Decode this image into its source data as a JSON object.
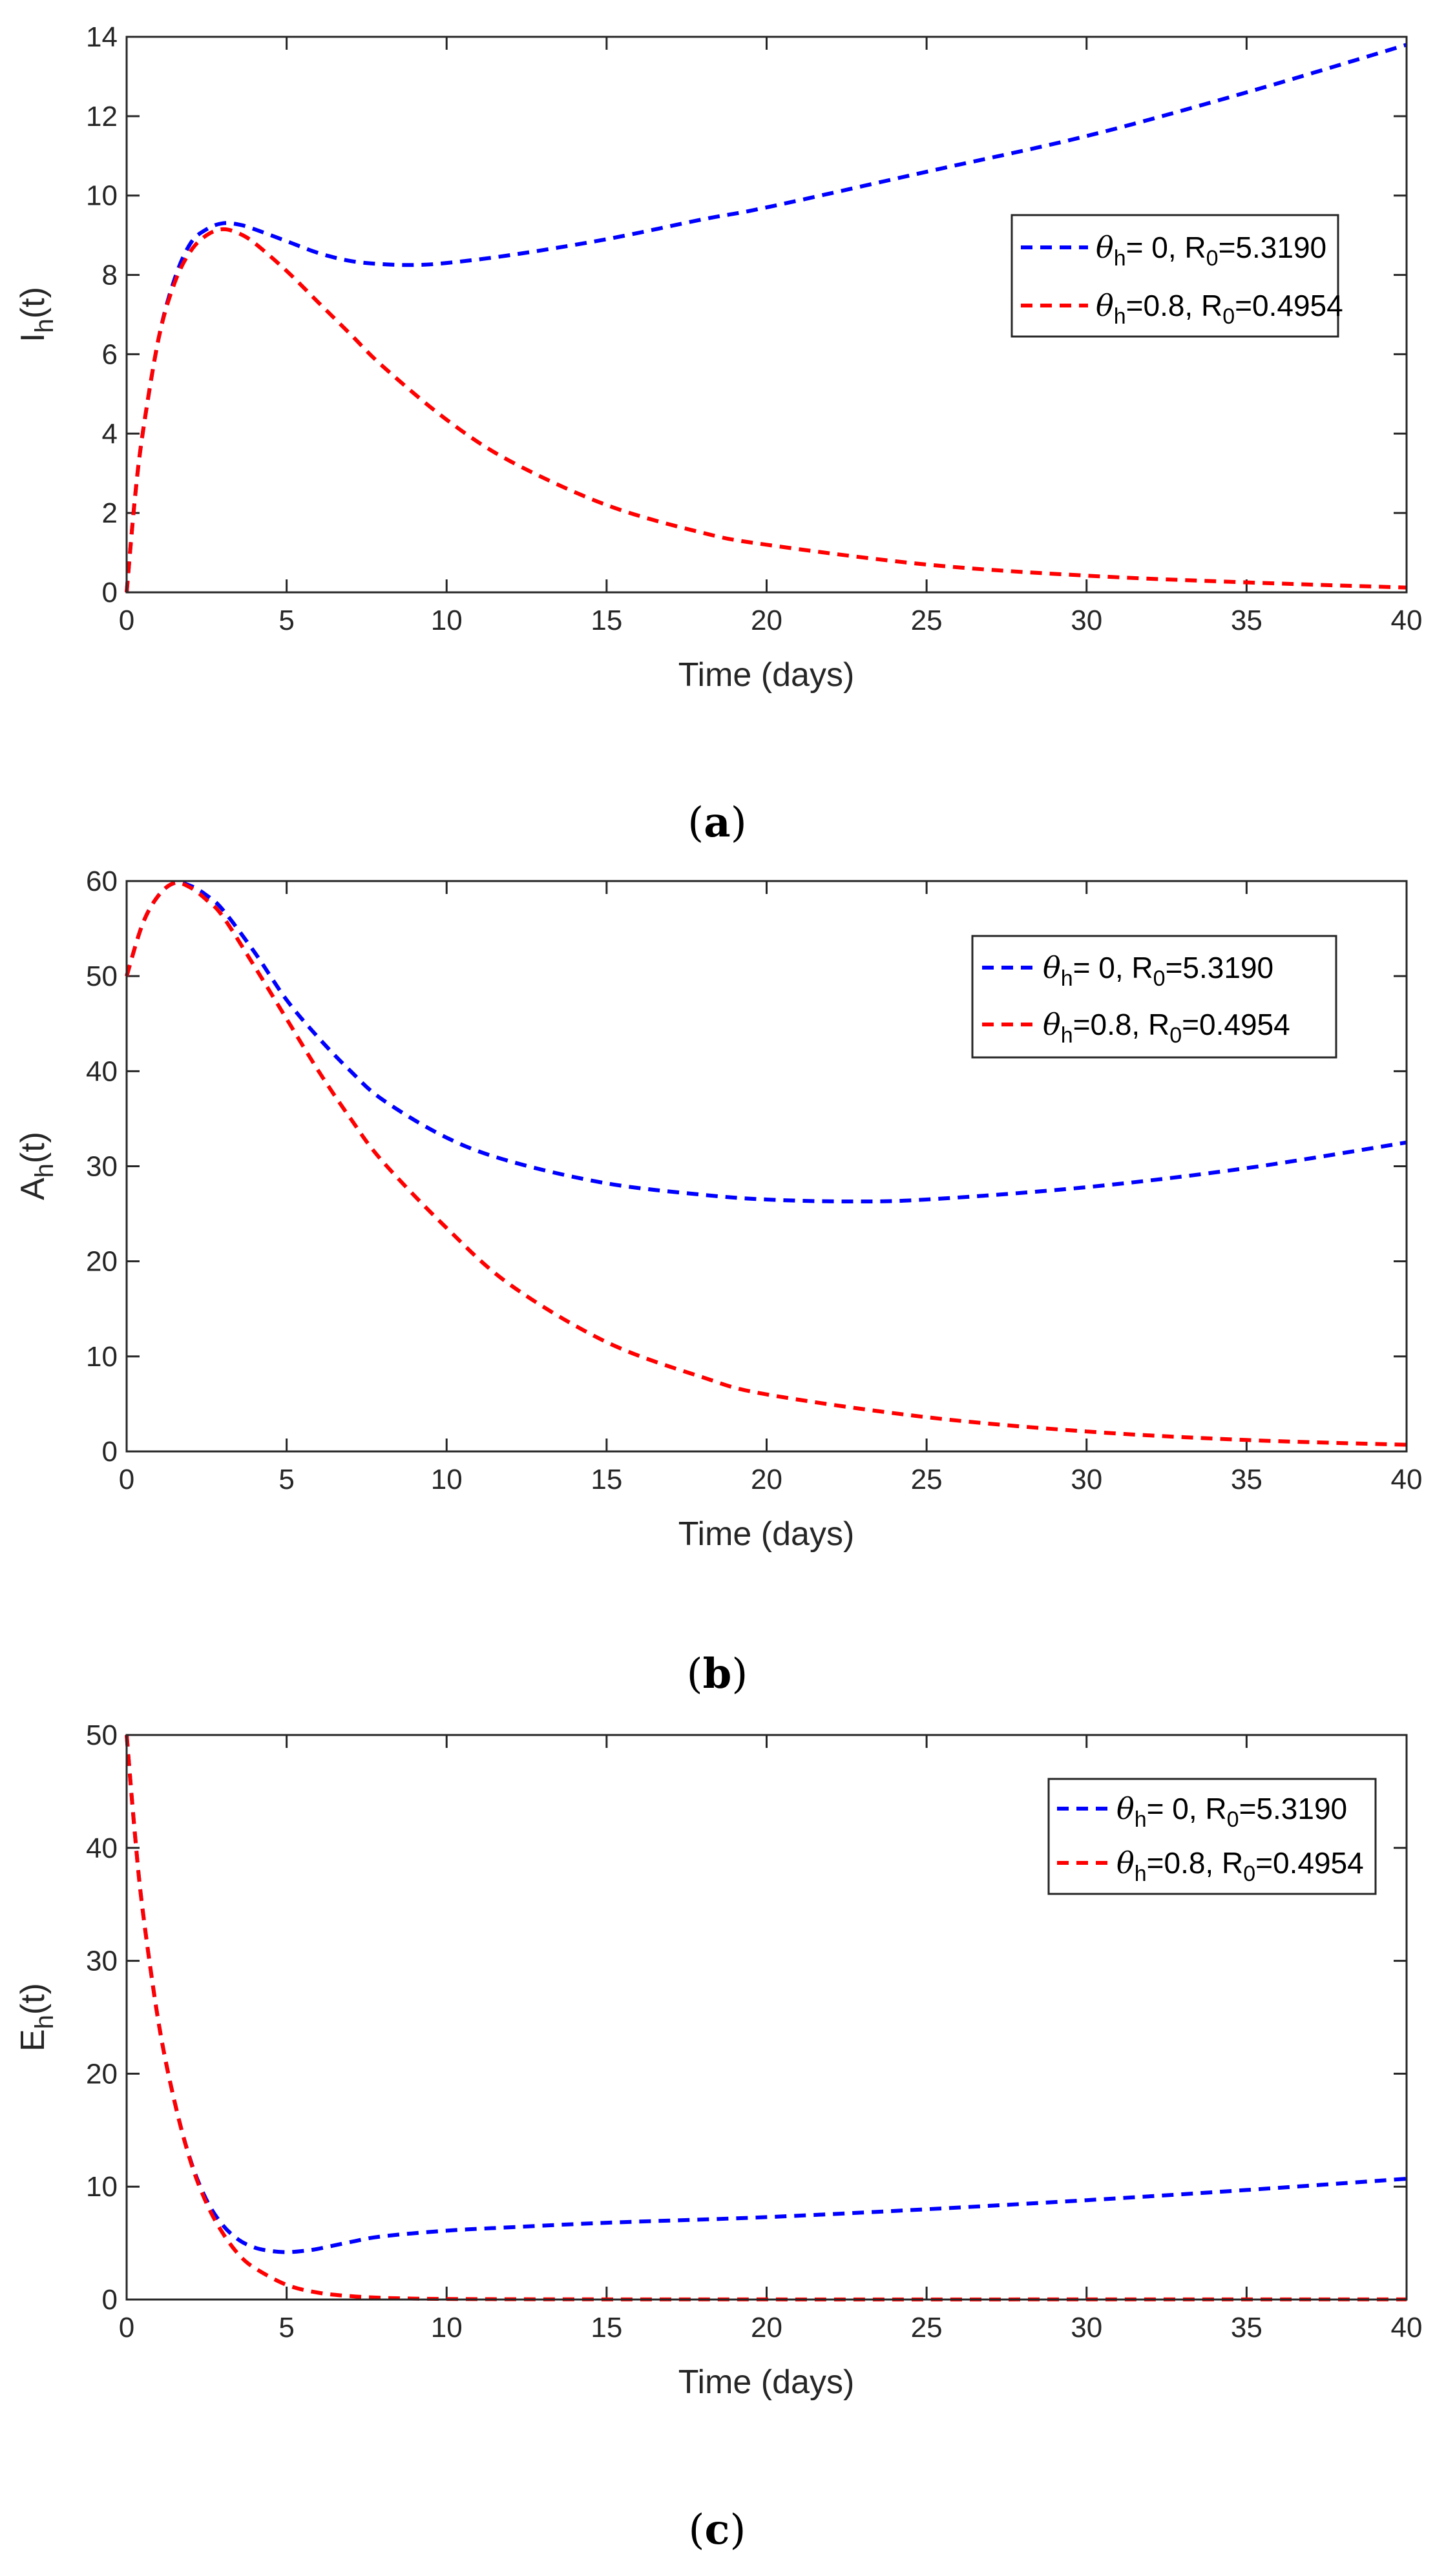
{
  "colors": {
    "series1": "#0000ff",
    "series2": "#ff0000",
    "axis": "#262626"
  },
  "legend": {
    "s1": {
      "symbol": "θ",
      "sub": "h",
      "middle": "= 0, R",
      "sub0": "0",
      "end": "=5.3190"
    },
    "s2": {
      "symbol": "θ",
      "sub": "h",
      "middle": "=0.8, R",
      "sub0": "0",
      "end": "=0.4954"
    }
  },
  "chart_data": [
    {
      "id": "a",
      "type": "line",
      "panel": {
        "open": "(",
        "letter": "a",
        "close": ")"
      },
      "xlabel": "Time (days)",
      "ylabel": {
        "main": "I",
        "sub": "h",
        "rest": "(t)"
      },
      "xlim": [
        0,
        40
      ],
      "ylim": [
        0,
        14
      ],
      "xticks": [
        "0",
        "5",
        "10",
        "15",
        "20",
        "25",
        "30",
        "35",
        "40"
      ],
      "yticks": [
        "0",
        "2",
        "4",
        "6",
        "8",
        "10",
        "12",
        "14"
      ],
      "series": [
        {
          "name": "θh = 0, R0=5.3190",
          "color": "#0000ff",
          "x": [
            0,
            0.25,
            0.5,
            1,
            1.5,
            2,
            2.5,
            3,
            3.5,
            4,
            5,
            6,
            7,
            8,
            9,
            10,
            12,
            15,
            18,
            20,
            25,
            30,
            35,
            40
          ],
          "y": [
            0,
            2.3,
            4.0,
            6.4,
            7.9,
            8.8,
            9.15,
            9.3,
            9.27,
            9.15,
            8.85,
            8.55,
            8.35,
            8.27,
            8.25,
            8.3,
            8.5,
            8.9,
            9.4,
            9.7,
            10.6,
            11.5,
            12.6,
            13.8
          ]
        },
        {
          "name": "θh=0.8, R0=0.4954",
          "color": "#ff0000",
          "x": [
            0,
            0.25,
            0.5,
            1,
            1.5,
            2,
            2.5,
            3,
            3.5,
            4,
            5,
            6,
            7,
            8,
            10,
            12,
            15,
            18,
            20,
            25,
            30,
            35,
            40
          ],
          "y": [
            0,
            2.3,
            4.0,
            6.4,
            7.8,
            8.6,
            9.0,
            9.15,
            9.05,
            8.8,
            8.1,
            7.3,
            6.5,
            5.7,
            4.35,
            3.3,
            2.2,
            1.5,
            1.2,
            0.7,
            0.42,
            0.25,
            0.12
          ]
        }
      ]
    },
    {
      "id": "b",
      "type": "line",
      "panel": {
        "open": "(",
        "letter": "b",
        "close": ")"
      },
      "xlabel": "Time (days)",
      "ylabel": {
        "main": "A",
        "sub": "h",
        "rest": "(t)"
      },
      "xlim": [
        0,
        40
      ],
      "ylim": [
        0,
        60
      ],
      "xticks": [
        "0",
        "5",
        "10",
        "15",
        "20",
        "25",
        "30",
        "35",
        "40"
      ],
      "yticks": [
        "0",
        "10",
        "20",
        "30",
        "40",
        "50",
        "60"
      ],
      "series": [
        {
          "name": "θh = 0, R0=5.3190",
          "color": "#0000ff",
          "x": [
            0,
            0.5,
            1,
            1.5,
            2,
            2.5,
            3,
            4,
            5,
            6,
            7,
            8,
            10,
            12,
            15,
            18,
            20,
            22.5,
            25,
            30,
            35,
            40
          ],
          "y": [
            50,
            55.5,
            58.5,
            59.8,
            59.5,
            58.5,
            57,
            52.5,
            47.5,
            43.5,
            40,
            37,
            33,
            30.5,
            28.2,
            27,
            26.5,
            26.3,
            26.5,
            27.8,
            29.8,
            32.5
          ]
        },
        {
          "name": "θh=0.8, R0=0.4954",
          "color": "#ff0000",
          "x": [
            0,
            0.5,
            1,
            1.5,
            2,
            2.5,
            3,
            4,
            5,
            6,
            7,
            8,
            10,
            12,
            15,
            18,
            20,
            25,
            30,
            35,
            40
          ],
          "y": [
            50,
            55.5,
            58.5,
            59.8,
            59.3,
            58,
            56.3,
            51,
            45.5,
            40,
            35,
            30.5,
            23.5,
            17.5,
            11.5,
            7.8,
            6,
            3.6,
            2.1,
            1.2,
            0.7
          ]
        }
      ]
    },
    {
      "id": "c",
      "type": "line",
      "panel": {
        "open": "(",
        "letter": "c",
        "close": ")"
      },
      "xlabel": "Time (days)",
      "ylabel": {
        "main": "E",
        "sub": "h",
        "rest": "(t)"
      },
      "xlim": [
        0,
        40
      ],
      "ylim": [
        0,
        50
      ],
      "xticks": [
        "0",
        "5",
        "10",
        "15",
        "20",
        "25",
        "30",
        "35",
        "40"
      ],
      "yticks": [
        "0",
        "10",
        "20",
        "30",
        "40",
        "50"
      ],
      "series": [
        {
          "name": "θh = 0, R0=5.3190",
          "color": "#0000ff",
          "x": [
            0,
            0.25,
            0.5,
            1,
            1.5,
            2,
            2.5,
            3,
            3.5,
            4,
            4.5,
            5,
            5.5,
            6,
            7,
            8,
            10,
            12,
            15,
            20,
            25,
            30,
            35,
            40
          ],
          "y": [
            50,
            41.5,
            34.5,
            24.5,
            17.5,
            12.3,
            8.8,
            6.6,
            5.3,
            4.6,
            4.3,
            4.2,
            4.3,
            4.5,
            5.1,
            5.6,
            6.1,
            6.4,
            6.8,
            7.3,
            8.0,
            8.8,
            9.7,
            10.7
          ]
        },
        {
          "name": "θh=0.8, R0=0.4954",
          "color": "#ff0000",
          "x": [
            0,
            0.25,
            0.5,
            1,
            1.5,
            2,
            2.5,
            3,
            3.5,
            4,
            5,
            6,
            7,
            8,
            9,
            10,
            12,
            15,
            20,
            30,
            40
          ],
          "y": [
            50,
            41.5,
            34.5,
            24.5,
            17.5,
            12.2,
            8.5,
            5.9,
            4.0,
            2.8,
            1.3,
            0.6,
            0.3,
            0.15,
            0.08,
            0.05,
            0.03,
            0.02,
            0.01,
            0.01,
            0.01
          ]
        }
      ]
    }
  ]
}
